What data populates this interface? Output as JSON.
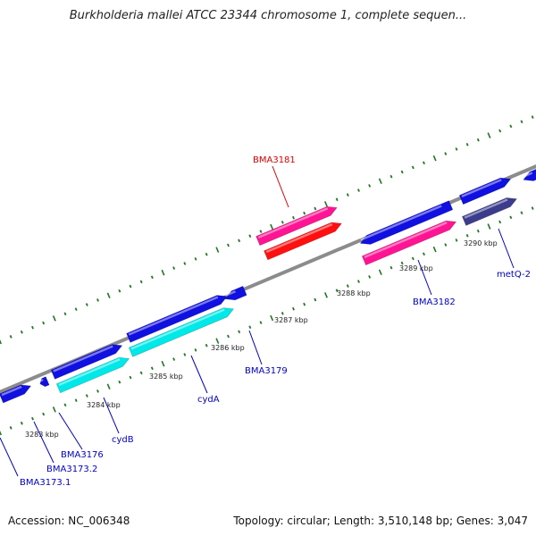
{
  "title": "Burkholderia mallei ATCC 23344 chromosome 1, complete sequen...",
  "footer": {
    "accession": "Accession: NC_006348",
    "summary": "Topology: circular; Length: 3,510,148 bp; Genes: 3,047"
  },
  "colors": {
    "backbone": "#8c8c8c",
    "tick": "#1f7a1f",
    "gene_blue": "#1010e0",
    "gene_cyan": "#00e8e8",
    "gene_pink": "#ff1493",
    "gene_red": "#ff1010",
    "gene_navy": "#3c3c8c",
    "label_blue": "#0000cc",
    "label_red": "#dd0000"
  },
  "kbp_labels": [
    "3283 kbp",
    "3284 kbp",
    "3285 kbp",
    "3286 kbp",
    "3287 kbp",
    "3288 kbp",
    "3289 kbp",
    "3290 kbp"
  ],
  "gene_labels": [
    {
      "text": "BMA3173.1",
      "color": "label_blue"
    },
    {
      "text": "BMA3173.2",
      "color": "label_blue"
    },
    {
      "text": "BMA3176",
      "color": "label_blue"
    },
    {
      "text": "cydB",
      "color": "label_blue"
    },
    {
      "text": "cydA",
      "color": "label_blue"
    },
    {
      "text": "BMA3179",
      "color": "label_blue"
    },
    {
      "text": "BMA3181",
      "color": "label_red"
    },
    {
      "text": "BMA3182",
      "color": "label_blue"
    },
    {
      "text": "metQ-2",
      "color": "label_blue"
    }
  ]
}
